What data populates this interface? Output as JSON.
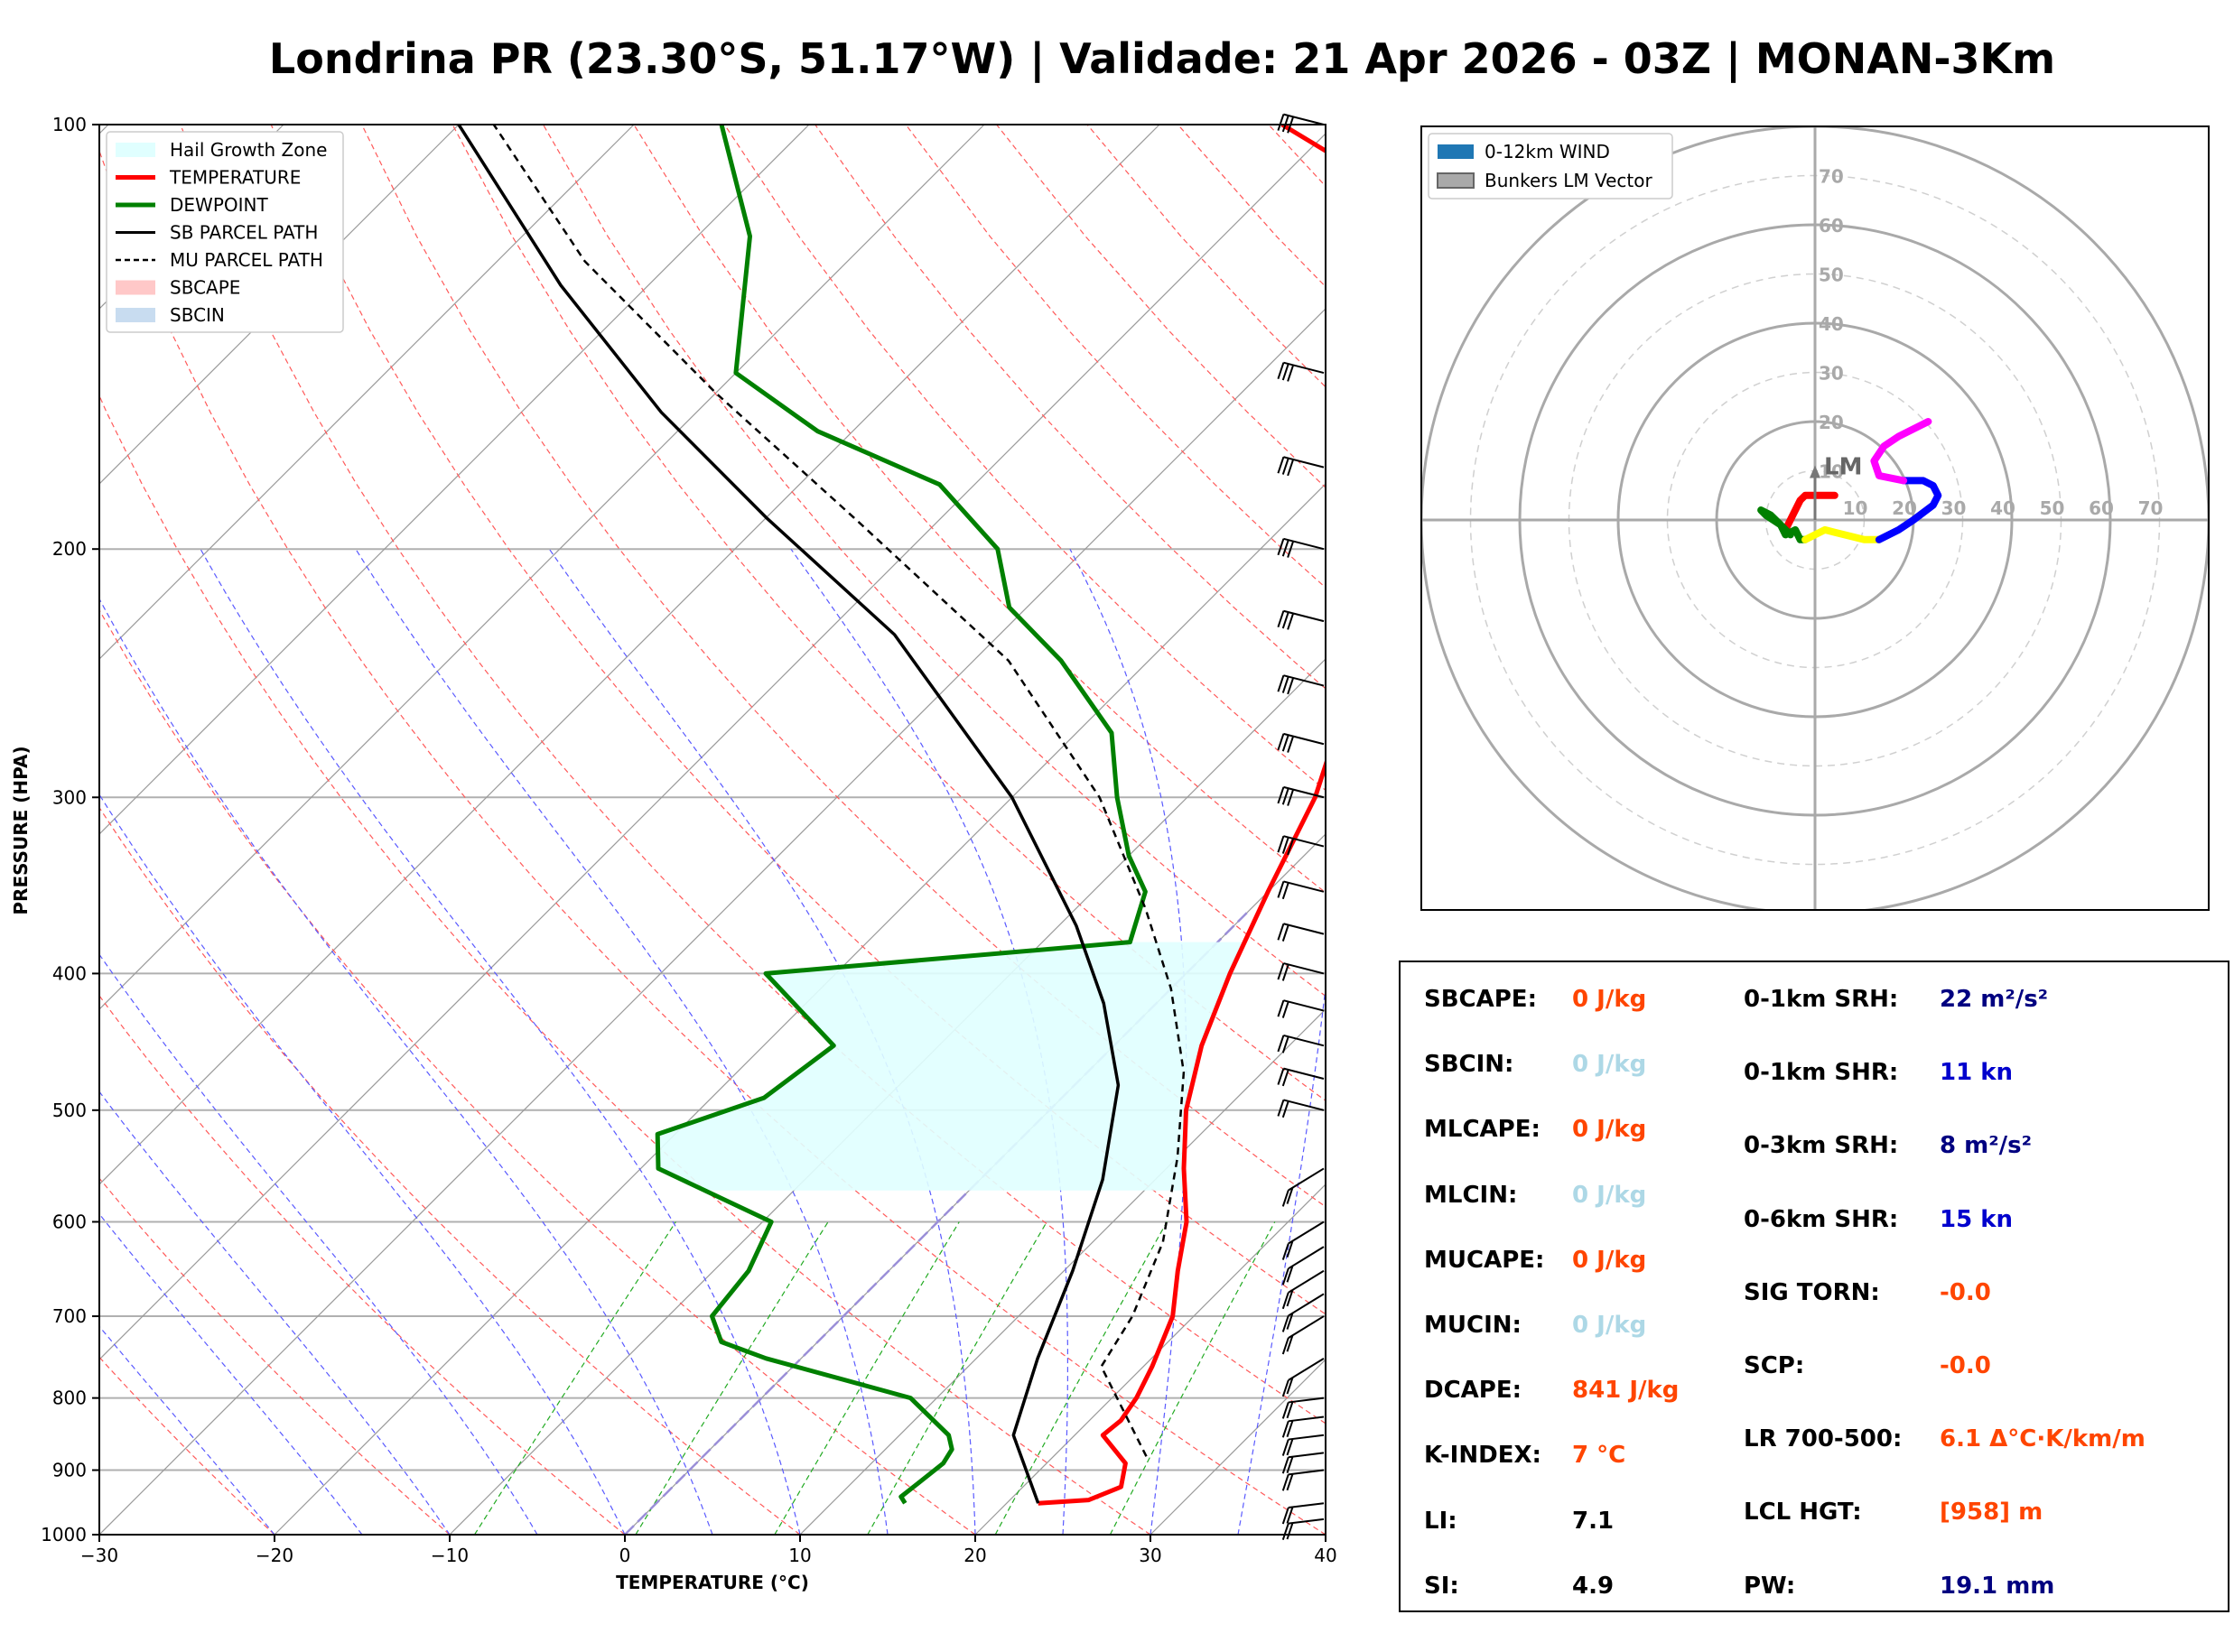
{
  "title": "Londrina PR (23.30°S, 51.17°W) | Validade: 21 Apr 2026 - 03Z | MONAN-3Km",
  "skewt": {
    "xlabel": "TEMPERATURE (°C)",
    "ylabel": "PRESSURE (HPA)",
    "x_ticks": [
      "−30",
      "−20",
      "−10",
      "0",
      "10",
      "20",
      "30",
      "40"
    ],
    "y_ticks": [
      "100",
      "200",
      "300",
      "400",
      "500",
      "600",
      "700",
      "800",
      "900",
      "1000"
    ],
    "legend": [
      "Hail Growth Zone",
      "TEMPERATURE",
      "DEWPOINT",
      "SB PARCEL PATH",
      "MU PARCEL PATH",
      "SBCAPE",
      "SBCIN"
    ]
  },
  "chart_data": [
    {
      "type": "line",
      "skew_t": true,
      "xlim": [
        -30,
        40
      ],
      "ylim": [
        1000,
        100
      ],
      "y_scale": "log",
      "series": [
        {
          "name": "TEMPERATURE",
          "color": "#ff0000",
          "points": [
            [
              21.8,
              950
            ],
            [
              24.5,
              945
            ],
            [
              25.6,
              925
            ],
            [
              24.5,
              890
            ],
            [
              21.6,
              850
            ],
            [
              21.8,
              830
            ],
            [
              21.4,
              800
            ],
            [
              20.5,
              760
            ],
            [
              18.8,
              700
            ],
            [
              16.5,
              650
            ],
            [
              14.2,
              600
            ],
            [
              11.0,
              550
            ],
            [
              7.8,
              500
            ],
            [
              5.0,
              450
            ],
            [
              2.5,
              400
            ],
            [
              0.0,
              350
            ],
            [
              -2.7,
              300
            ],
            [
              -7.0,
              250
            ],
            [
              -11.0,
              200
            ],
            [
              -16.5,
              175
            ],
            [
              -19.5,
              150
            ],
            [
              -25.0,
              125
            ],
            [
              -30.0,
              115
            ],
            [
              -43.0,
              100
            ]
          ]
        },
        {
          "name": "DEWPOINT",
          "color": "#008000",
          "points": [
            [
              14.2,
              950
            ],
            [
              13.6,
              940
            ],
            [
              13.8,
              920
            ],
            [
              14.1,
              890
            ],
            [
              13.8,
              870
            ],
            [
              12.8,
              850
            ],
            [
              8.5,
              800
            ],
            [
              -2.0,
              750
            ],
            [
              -5.5,
              730
            ],
            [
              -7.5,
              700
            ],
            [
              -8.0,
              650
            ],
            [
              -9.5,
              600
            ],
            [
              -19.0,
              550
            ],
            [
              -21.0,
              520
            ],
            [
              -17.0,
              490
            ],
            [
              -16.0,
              450
            ],
            [
              -24.0,
              400
            ],
            [
              -5.0,
              380
            ],
            [
              -7.0,
              350
            ],
            [
              -10.0,
              330
            ],
            [
              -14.0,
              300
            ],
            [
              -18.0,
              270
            ],
            [
              -25.0,
              240
            ],
            [
              -31.0,
              220
            ],
            [
              -35.0,
              200
            ],
            [
              -42.0,
              180
            ],
            [
              -52.0,
              165
            ],
            [
              -60.0,
              150
            ],
            [
              -67.0,
              120
            ],
            [
              -75.0,
              100
            ]
          ]
        },
        {
          "name": "SB PARCEL PATH",
          "color": "#000000",
          "points": [
            [
              21.8,
              950
            ],
            [
              16.5,
              850
            ],
            [
              13.5,
              750
            ],
            [
              10.5,
              650
            ],
            [
              7.0,
              560
            ],
            [
              2.5,
              480
            ],
            [
              -3.0,
              420
            ],
            [
              -9.0,
              370
            ],
            [
              -20.0,
              300
            ],
            [
              -36.0,
              230
            ],
            [
              -50.0,
              190
            ],
            [
              -62.0,
              160
            ],
            [
              -75.0,
              130
            ],
            [
              -90.0,
              100
            ]
          ]
        },
        {
          "name": "MU PARCEL PATH",
          "color": "#000000",
          "dash": true,
          "points": [
            [
              25.3,
              880
            ],
            [
              17.6,
              760
            ],
            [
              16.5,
              700
            ],
            [
              14.0,
              620
            ],
            [
              10.0,
              540
            ],
            [
              5.5,
              470
            ],
            [
              0.0,
              410
            ],
            [
              -6.0,
              360
            ],
            [
              -15.0,
              300
            ],
            [
              -28.0,
              240
            ],
            [
              -45.0,
              190
            ],
            [
              -60.0,
              155
            ],
            [
              -75.0,
              125
            ],
            [
              -88.0,
              100
            ]
          ]
        }
      ],
      "hail_growth_zone": {
        "top_hpa": 380,
        "bottom_hpa": 570,
        "color": "#e0ffff"
      }
    },
    {
      "type": "scatter",
      "name": "hodograph",
      "rings": [
        "10",
        "20",
        "30",
        "40",
        "50",
        "60",
        "70"
      ],
      "ring_max": 80,
      "legend": [
        "0-12km WIND",
        "Bunkers LM Vector"
      ],
      "bunkers_label": "LM",
      "bunkers_vector": [
        0,
        10
      ],
      "segments": [
        {
          "color": "#ff0000",
          "points": [
            [
              -6,
              -2
            ],
            [
              -3,
              4
            ],
            [
              -2,
              5
            ],
            [
              1,
              5
            ],
            [
              4,
              5
            ]
          ]
        },
        {
          "color": "#008000",
          "points": [
            [
              -5,
              -3
            ],
            [
              -7,
              -1
            ],
            [
              -10,
              1
            ],
            [
              -11,
              2
            ],
            [
              -9,
              1
            ],
            [
              -7,
              -1
            ],
            [
              -6,
              -3
            ],
            [
              -4,
              -2
            ],
            [
              -3,
              -4
            ],
            [
              -2,
              -4
            ]
          ]
        },
        {
          "color": "#ffff00",
          "points": [
            [
              -2,
              -4
            ],
            [
              2,
              -2
            ],
            [
              6,
              -3
            ],
            [
              10,
              -4
            ],
            [
              13,
              -4
            ]
          ]
        },
        {
          "color": "#0000ff",
          "points": [
            [
              13,
              -4
            ],
            [
              17,
              -2
            ],
            [
              20,
              0
            ],
            [
              24,
              3
            ],
            [
              25,
              5
            ],
            [
              24,
              7
            ],
            [
              22,
              8
            ],
            [
              18,
              8
            ]
          ]
        },
        {
          "color": "#ff00ff",
          "points": [
            [
              18,
              8
            ],
            [
              13,
              9
            ],
            [
              12,
              12
            ],
            [
              14,
              15
            ],
            [
              17,
              17
            ],
            [
              21,
              19
            ],
            [
              23,
              20
            ]
          ]
        }
      ]
    }
  ],
  "params": {
    "left": [
      {
        "label": "SBCAPE:",
        "value": "0 J/kg",
        "color": "#ff4500"
      },
      {
        "label": "SBCIN:",
        "value": "0 J/kg",
        "color": "#add8e6"
      },
      {
        "label": "MLCAPE:",
        "value": "0 J/kg",
        "color": "#ff4500"
      },
      {
        "label": "MLCIN:",
        "value": "0 J/kg",
        "color": "#add8e6"
      },
      {
        "label": "MUCAPE:",
        "value": "0 J/kg",
        "color": "#ff4500"
      },
      {
        "label": "MUCIN:",
        "value": "0 J/kg",
        "color": "#add8e6"
      },
      {
        "label": "DCAPE:",
        "value": "841 J/kg",
        "color": "#ff4500"
      },
      {
        "label": "K-INDEX:",
        "value": "7 °C",
        "color": "#ff4500"
      },
      {
        "label": "LI:",
        "value": "7.1",
        "color": "#000000"
      },
      {
        "label": "SI:",
        "value": "4.9",
        "color": "#000000"
      }
    ],
    "right": [
      {
        "label": "0-1km SRH:",
        "value": "22 m²/s²",
        "color": "#000080"
      },
      {
        "label": "0-1km SHR:",
        "value": "11 kn",
        "color": "#0000cd"
      },
      {
        "label": "0-3km SRH:",
        "value": "8 m²/s²",
        "color": "#000080"
      },
      {
        "label": "0-6km SHR:",
        "value": "15 kn",
        "color": "#0000cd"
      },
      {
        "label": "SIG TORN:",
        "value": "-0.0",
        "color": "#ff4500"
      },
      {
        "label": "SCP:",
        "value": "-0.0",
        "color": "#ff4500"
      },
      {
        "label": "LR 700-500:",
        "value": "6.1 Δ°C·K/km/m",
        "color": "#ff4500"
      },
      {
        "label": "LCL HGT:",
        "value": "[958] m",
        "color": "#ff4500"
      },
      {
        "label": "PW:",
        "value": "19.1 mm",
        "color": "#000080"
      }
    ]
  }
}
